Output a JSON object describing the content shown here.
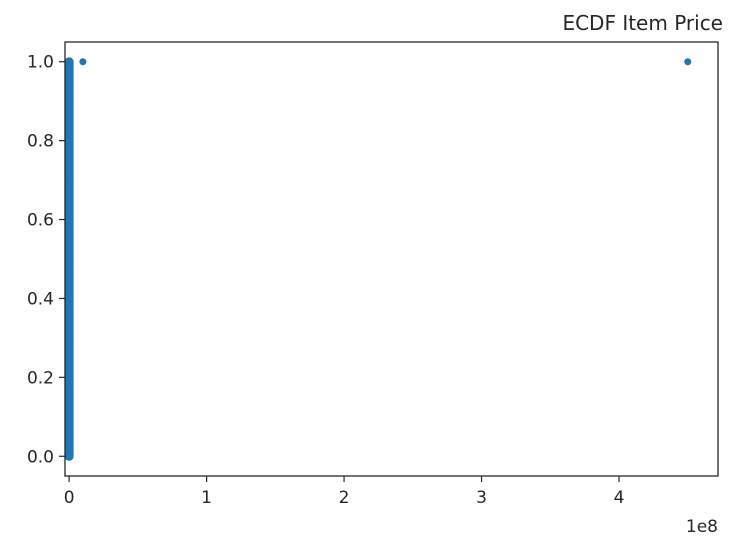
{
  "chart_data": {
    "type": "scatter",
    "title": "ECDF Item Price",
    "xlabel": "",
    "ylabel": "",
    "x_offset_label": "1e8",
    "xlim": [
      -3000000.0,
      472000000.0
    ],
    "ylim": [
      -0.05,
      1.05
    ],
    "x_ticks": [
      0,
      1,
      2,
      3,
      4
    ],
    "y_ticks": [
      "0.0",
      "0.2",
      "0.4",
      "0.6",
      "0.8",
      "1.0"
    ],
    "grid": false,
    "color": "#1f77b4",
    "series": [
      {
        "x_scale": 100000000,
        "points": [
          [
            0.0,
            0.0
          ],
          [
            0.0,
            0.05
          ],
          [
            0.0,
            0.1
          ],
          [
            0.0,
            0.15
          ],
          [
            0.0,
            0.2
          ],
          [
            0.0,
            0.25
          ],
          [
            0.0,
            0.3
          ],
          [
            0.0,
            0.35
          ],
          [
            0.0,
            0.4
          ],
          [
            0.0,
            0.45
          ],
          [
            0.0,
            0.5
          ],
          [
            0.0,
            0.55
          ],
          [
            0.0,
            0.6
          ],
          [
            0.0,
            0.65
          ],
          [
            0.0,
            0.7
          ],
          [
            0.0,
            0.75
          ],
          [
            0.0,
            0.8
          ],
          [
            0.0,
            0.85
          ],
          [
            0.0,
            0.9
          ],
          [
            0.0,
            0.95
          ],
          [
            0.0,
            1.0
          ],
          [
            0.1,
            1.0
          ],
          [
            4.5,
            1.0
          ]
        ]
      }
    ]
  }
}
